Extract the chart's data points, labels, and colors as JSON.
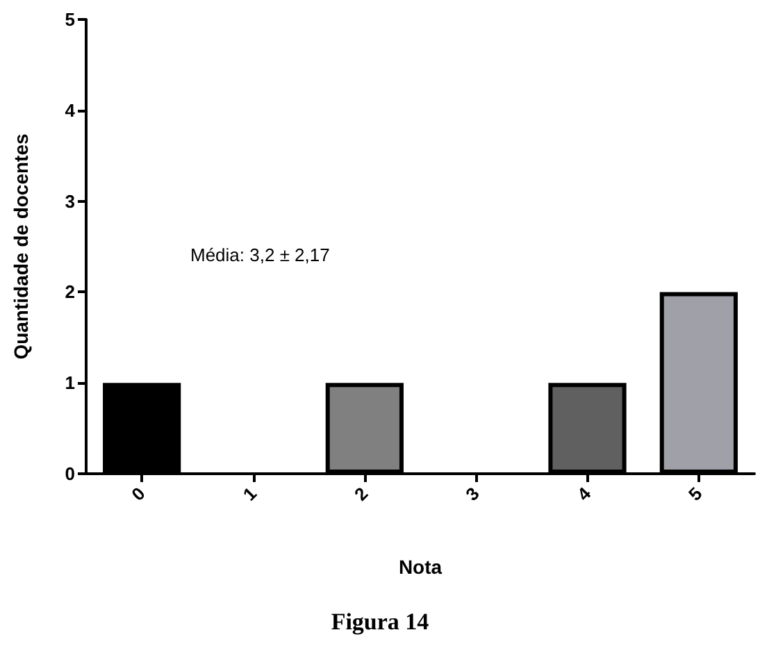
{
  "chart_data": {
    "type": "bar",
    "title": "Figura 14",
    "xlabel": "Nota",
    "ylabel": "Quantidade de docentes",
    "categories": [
      "0",
      "1",
      "2",
      "3",
      "4",
      "5"
    ],
    "values": [
      1,
      0,
      1,
      0,
      1,
      2
    ],
    "colors": [
      "#000000",
      null,
      "#808080",
      null,
      "#606060",
      "#a0a0a8"
    ],
    "ylim": [
      0,
      5
    ],
    "yticks": [
      0,
      1,
      2,
      3,
      4,
      5
    ],
    "grid": false,
    "annotations": [
      "Média: 3,2 ± 2,17"
    ]
  }
}
